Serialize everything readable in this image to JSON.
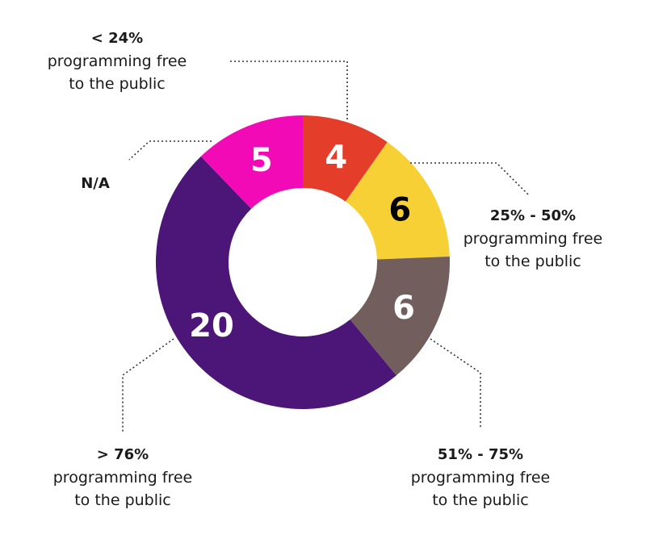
{
  "chart_data": {
    "type": "pie",
    "donut": true,
    "start": "top",
    "direction": "clockwise",
    "slices": [
      {
        "value": 4,
        "color": "#E43D2A",
        "value_color": "#ffffff",
        "label_top": "< 24%",
        "label_rest": [
          "programming free",
          "to the public"
        ]
      },
      {
        "value": 6,
        "color": "#F7D035",
        "value_color": "#000000",
        "label_top": "25% - 50%",
        "label_rest": [
          "programming free",
          "to the public"
        ]
      },
      {
        "value": 6,
        "color": "#715E5D",
        "value_color": "#ffffff",
        "label_top": "51% - 75%",
        "label_rest": [
          "programming free",
          "to the public"
        ]
      },
      {
        "value": 20,
        "color": "#4B1677",
        "value_color": "#ffffff",
        "label_top": "> 76%",
        "label_rest": [
          "programming free",
          "to the public"
        ]
      },
      {
        "value": 5,
        "color": "#F20AB7",
        "value_color": "#ffffff",
        "label_top": "N/A",
        "label_rest": []
      }
    ]
  }
}
